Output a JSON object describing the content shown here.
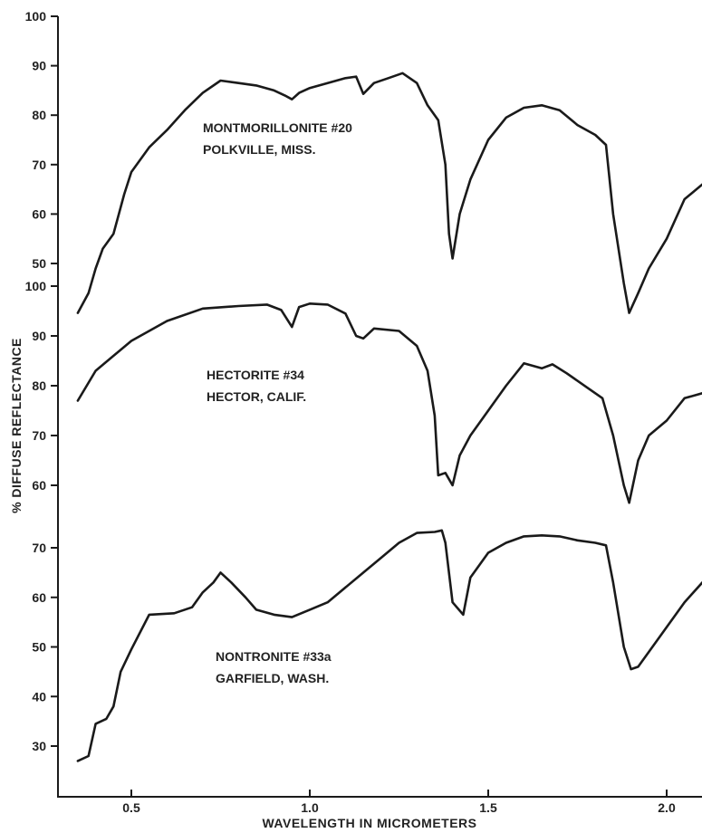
{
  "chart_data": {
    "type": "line",
    "xlabel": "WAVELENGTH IN MICROMETERS",
    "ylabel": "% DIFFUSE REFLECTANCE",
    "xlim": [
      0.35,
      2.1
    ],
    "x_ticks": [
      0.5,
      1.0,
      1.5,
      2.0
    ],
    "x_tick_labels": [
      "0.5",
      "1.0",
      "1.5",
      "2.0"
    ],
    "grid": false,
    "legend": "none",
    "panels": [
      {
        "id": "top",
        "ylim": [
          50,
          100
        ],
        "y_ticks": [
          50,
          60,
          70,
          80,
          90,
          100
        ],
        "y_tick_labels": [
          "50",
          "60",
          "70",
          "80",
          "90",
          "100"
        ]
      },
      {
        "id": "middle",
        "ylim": [
          60,
          100
        ],
        "y_ticks": [
          60,
          70,
          80,
          90,
          100
        ],
        "y_tick_labels": [
          "60",
          "70",
          "80",
          "90",
          "100"
        ]
      },
      {
        "id": "bottom",
        "ylim": [
          30,
          70
        ],
        "y_ticks": [
          30,
          40,
          50,
          60,
          70
        ],
        "y_tick_labels": [
          "30",
          "40",
          "50",
          "60",
          "70"
        ]
      }
    ],
    "series": [
      {
        "panel": "top",
        "annotation": [
          "MONTMORILLONITE #20",
          "POLKVILLE, MISS."
        ],
        "points": [
          [
            0.35,
            40
          ],
          [
            0.38,
            44
          ],
          [
            0.4,
            49
          ],
          [
            0.42,
            53
          ],
          [
            0.45,
            56
          ],
          [
            0.48,
            64
          ],
          [
            0.5,
            68.5
          ],
          [
            0.55,
            73.5
          ],
          [
            0.6,
            77
          ],
          [
            0.65,
            81
          ],
          [
            0.7,
            84.5
          ],
          [
            0.75,
            87
          ],
          [
            0.8,
            86.5
          ],
          [
            0.85,
            86
          ],
          [
            0.9,
            85
          ],
          [
            0.93,
            84
          ],
          [
            0.95,
            83.2
          ],
          [
            0.97,
            84.5
          ],
          [
            1.0,
            85.5
          ],
          [
            1.05,
            86.5
          ],
          [
            1.1,
            87.5
          ],
          [
            1.13,
            87.8
          ],
          [
            1.15,
            84.3
          ],
          [
            1.18,
            86.5
          ],
          [
            1.22,
            87.5
          ],
          [
            1.26,
            88.5
          ],
          [
            1.3,
            86.5
          ],
          [
            1.33,
            82
          ],
          [
            1.36,
            79
          ],
          [
            1.38,
            70
          ],
          [
            1.39,
            56
          ],
          [
            1.4,
            51
          ],
          [
            1.42,
            60
          ],
          [
            1.45,
            67
          ],
          [
            1.5,
            75
          ],
          [
            1.55,
            79.5
          ],
          [
            1.6,
            81.5
          ],
          [
            1.65,
            82
          ],
          [
            1.7,
            81
          ],
          [
            1.75,
            78
          ],
          [
            1.8,
            76
          ],
          [
            1.83,
            74
          ],
          [
            1.85,
            60
          ],
          [
            1.88,
            46
          ],
          [
            1.895,
            40
          ],
          [
            1.92,
            44
          ],
          [
            1.95,
            49
          ],
          [
            2.0,
            55
          ],
          [
            2.05,
            63
          ],
          [
            2.1,
            66
          ]
        ]
      },
      {
        "panel": "middle",
        "annotation": [
          "HECTORITE #34",
          "HECTOR, CALIF."
        ],
        "points": [
          [
            0.35,
            77
          ],
          [
            0.4,
            83
          ],
          [
            0.5,
            89
          ],
          [
            0.6,
            93
          ],
          [
            0.7,
            95.5
          ],
          [
            0.8,
            96
          ],
          [
            0.88,
            96.3
          ],
          [
            0.92,
            95.2
          ],
          [
            0.95,
            91.8
          ],
          [
            0.97,
            95.8
          ],
          [
            1.0,
            96.5
          ],
          [
            1.05,
            96.3
          ],
          [
            1.1,
            94.5
          ],
          [
            1.13,
            90
          ],
          [
            1.15,
            89.5
          ],
          [
            1.18,
            91.5
          ],
          [
            1.25,
            91
          ],
          [
            1.3,
            88
          ],
          [
            1.33,
            83
          ],
          [
            1.35,
            74
          ],
          [
            1.36,
            62
          ],
          [
            1.38,
            62.5
          ],
          [
            1.4,
            60
          ],
          [
            1.42,
            66
          ],
          [
            1.45,
            70
          ],
          [
            1.5,
            75
          ],
          [
            1.55,
            80
          ],
          [
            1.6,
            84.5
          ],
          [
            1.65,
            83.5
          ],
          [
            1.68,
            84.3
          ],
          [
            1.72,
            82.5
          ],
          [
            1.78,
            79.5
          ],
          [
            1.82,
            77.5
          ],
          [
            1.85,
            70
          ],
          [
            1.88,
            60
          ],
          [
            1.895,
            56.5
          ],
          [
            1.92,
            65
          ],
          [
            1.95,
            70
          ],
          [
            2.0,
            73
          ],
          [
            2.05,
            77.5
          ],
          [
            2.1,
            78.5
          ]
        ]
      },
      {
        "panel": "bottom",
        "annotation": [
          "NONTRONITE #33a",
          "GARFIELD, WASH."
        ],
        "points": [
          [
            0.35,
            27
          ],
          [
            0.38,
            28
          ],
          [
            0.4,
            34.5
          ],
          [
            0.43,
            35.5
          ],
          [
            0.45,
            38
          ],
          [
            0.47,
            45
          ],
          [
            0.5,
            49.5
          ],
          [
            0.55,
            56.5
          ],
          [
            0.62,
            56.8
          ],
          [
            0.67,
            58
          ],
          [
            0.7,
            61
          ],
          [
            0.73,
            63
          ],
          [
            0.75,
            65
          ],
          [
            0.78,
            63
          ],
          [
            0.82,
            60
          ],
          [
            0.85,
            57.5
          ],
          [
            0.9,
            56.5
          ],
          [
            0.95,
            56
          ],
          [
            1.0,
            57.5
          ],
          [
            1.05,
            59
          ],
          [
            1.1,
            62
          ],
          [
            1.15,
            65
          ],
          [
            1.2,
            68
          ],
          [
            1.25,
            71
          ],
          [
            1.3,
            73
          ],
          [
            1.35,
            73.2
          ],
          [
            1.37,
            73.5
          ],
          [
            1.38,
            71
          ],
          [
            1.4,
            59
          ],
          [
            1.43,
            56.5
          ],
          [
            1.45,
            64
          ],
          [
            1.5,
            69
          ],
          [
            1.55,
            71
          ],
          [
            1.6,
            72.3
          ],
          [
            1.65,
            72.5
          ],
          [
            1.7,
            72.3
          ],
          [
            1.75,
            71.5
          ],
          [
            1.8,
            71
          ],
          [
            1.83,
            70.5
          ],
          [
            1.85,
            63
          ],
          [
            1.88,
            50
          ],
          [
            1.9,
            45.5
          ],
          [
            1.92,
            46
          ],
          [
            1.95,
            49
          ],
          [
            2.0,
            54
          ],
          [
            2.05,
            59
          ],
          [
            2.1,
            63
          ]
        ]
      }
    ]
  }
}
